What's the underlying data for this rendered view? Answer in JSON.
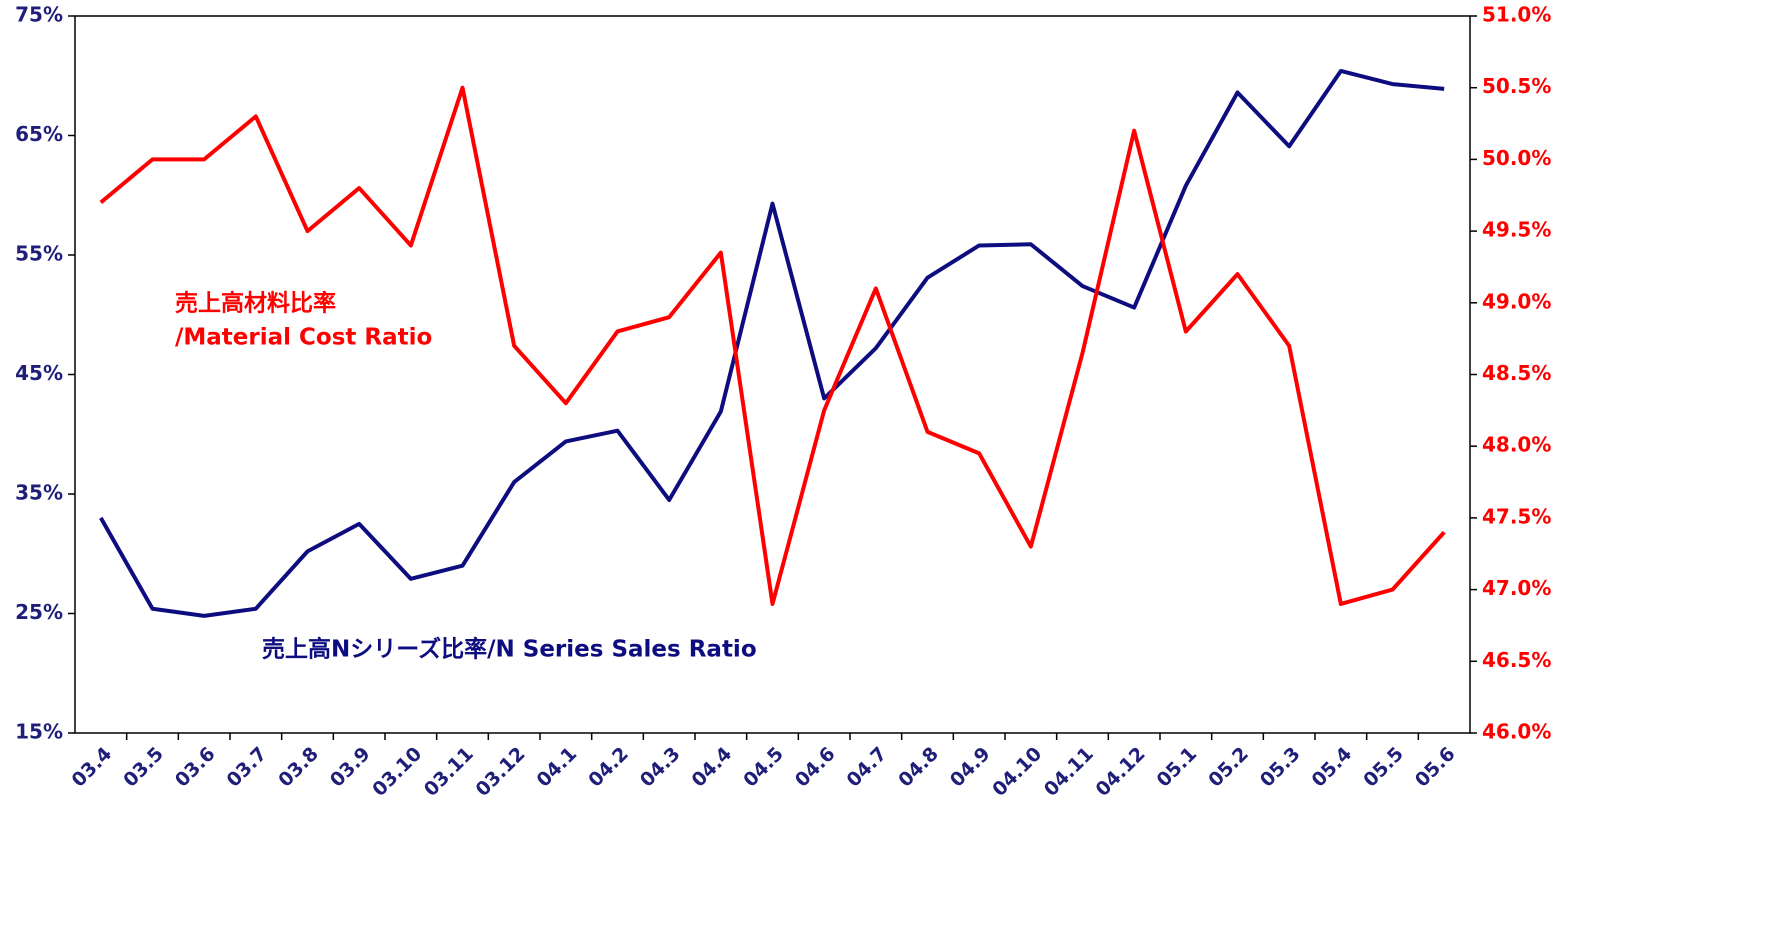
{
  "chart_data": {
    "type": "line",
    "categories": [
      "03.4",
      "03.5",
      "03.6",
      "03.7",
      "03.8",
      "03.9",
      "03.10",
      "03.11",
      "03.12",
      "04.1",
      "04.2",
      "04.3",
      "04.4",
      "04.5",
      "04.6",
      "04.7",
      "04.8",
      "04.9",
      "04.10",
      "04.11",
      "04.12",
      "05.1",
      "05.2",
      "05.3",
      "05.4",
      "05.5",
      "05.6"
    ],
    "series": [
      {
        "color": "#0d0d80",
        "axis": "y",
        "values": [
          33.0,
          25.4,
          24.8,
          25.4,
          30.2,
          32.5,
          27.9,
          29.0,
          36.0,
          39.4,
          40.3,
          34.5,
          41.9,
          59.3,
          43.0,
          47.2,
          53.1,
          55.8,
          55.9,
          52.4,
          50.6,
          60.8,
          68.6,
          64.1,
          70.4,
          69.3,
          68.9
        ]
      },
      {
        "color": "#ff0000",
        "axis": "y2",
        "values": [
          49.7,
          50.0,
          50.0,
          50.3,
          49.5,
          49.8,
          49.4,
          50.5,
          48.7,
          48.3,
          48.8,
          48.9,
          49.35,
          46.9,
          48.25,
          49.1,
          48.1,
          47.95,
          47.3,
          48.65,
          50.2,
          48.8,
          49.2,
          48.7,
          46.9,
          47.0,
          47.4
        ]
      }
    ],
    "ylim": [
      15,
      75
    ],
    "yticks": [
      {
        "value": 15,
        "label": "15%"
      },
      {
        "value": 25,
        "label": "25%"
      },
      {
        "value": 35,
        "label": "35%"
      },
      {
        "value": 45,
        "label": "45%"
      },
      {
        "value": 55,
        "label": "55%"
      },
      {
        "value": 65,
        "label": "65%"
      },
      {
        "value": 75,
        "label": "75%"
      }
    ],
    "y2lim": [
      46.0,
      51.0
    ],
    "y2ticks": [
      {
        "value": 46.0,
        "label": "46.0%"
      },
      {
        "value": 46.5,
        "label": "46.5%"
      },
      {
        "value": 47.0,
        "label": "47.0%"
      },
      {
        "value": 47.5,
        "label": "47.5%"
      },
      {
        "value": 48.0,
        "label": "48.0%"
      },
      {
        "value": 48.5,
        "label": "48.5%"
      },
      {
        "value": 49.0,
        "label": "49.0%"
      },
      {
        "value": 49.5,
        "label": "49.5%"
      },
      {
        "value": 50.0,
        "label": "50.0%"
      },
      {
        "value": 50.5,
        "label": "50.5%"
      },
      {
        "value": 51.0,
        "label": "51.0%"
      }
    ],
    "annotations": [
      {
        "lines": [
          "売上高材料比率",
          "/Material Cost Ratio"
        ],
        "color": "#ff0000"
      },
      {
        "lines": [
          "売上高Nシリーズ比率/N Series Sales Ratio"
        ],
        "color": "#0d0d80"
      }
    ]
  }
}
